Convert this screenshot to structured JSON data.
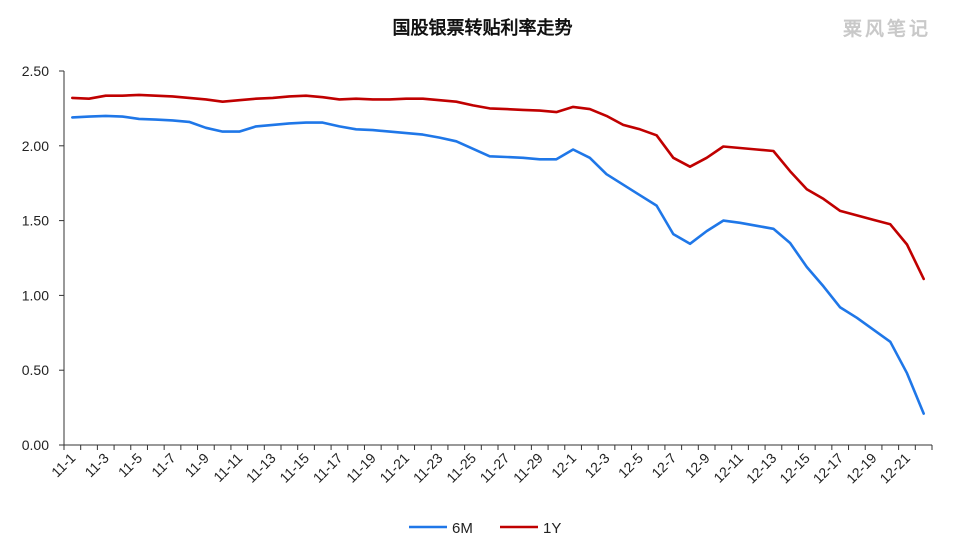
{
  "title": "国股银票转贴利率走势",
  "watermark": "粟风笔记",
  "chart_data": {
    "type": "line",
    "title": "国股银票转贴利率走势",
    "xlabel": "",
    "ylabel": "",
    "ylim": [
      0,
      2.5
    ],
    "yticks": [
      "0.00",
      "0.50",
      "1.00",
      "1.50",
      "2.00",
      "2.50"
    ],
    "xtick_labels": [
      "11-1",
      "11-3",
      "11-5",
      "11-7",
      "11-9",
      "11-11",
      "11-13",
      "11-15",
      "11-17",
      "11-19",
      "11-21",
      "11-23",
      "11-25",
      "11-27",
      "11-29",
      "12-1",
      "12-3",
      "12-5",
      "12-7",
      "12-9",
      "12-11",
      "12-13",
      "12-15",
      "12-17",
      "12-19",
      "12-21"
    ],
    "grid": false,
    "legend_position": "bottom",
    "series": [
      {
        "name": "6M",
        "color": "#1f77e8",
        "values": [
          2.19,
          2.195,
          2.2,
          2.195,
          2.18,
          2.175,
          2.17,
          2.16,
          2.12,
          2.095,
          2.095,
          2.13,
          2.14,
          2.15,
          2.155,
          2.155,
          2.13,
          2.11,
          2.105,
          2.095,
          2.085,
          2.075,
          2.055,
          2.03,
          1.98,
          1.93,
          1.925,
          1.92,
          1.91,
          1.91,
          1.975,
          1.92,
          1.81,
          1.74,
          1.67,
          1.6,
          1.41,
          1.345,
          1.43,
          1.5,
          1.485,
          1.465,
          1.445,
          1.35,
          1.19,
          1.06,
          0.92,
          0.85,
          0.77,
          0.69,
          0.48,
          0.21
        ]
      },
      {
        "name": "1Y",
        "color": "#c00000",
        "values": [
          2.32,
          2.315,
          2.335,
          2.335,
          2.34,
          2.335,
          2.33,
          2.32,
          2.31,
          2.295,
          2.305,
          2.315,
          2.32,
          2.33,
          2.335,
          2.325,
          2.31,
          2.315,
          2.31,
          2.31,
          2.315,
          2.315,
          2.305,
          2.295,
          2.27,
          2.25,
          2.245,
          2.24,
          2.235,
          2.225,
          2.26,
          2.245,
          2.2,
          2.14,
          2.11,
          2.07,
          1.92,
          1.86,
          1.92,
          1.995,
          1.985,
          1.975,
          1.965,
          1.83,
          1.71,
          1.645,
          1.565,
          1.535,
          1.505,
          1.475,
          1.34,
          1.11
        ]
      }
    ]
  }
}
